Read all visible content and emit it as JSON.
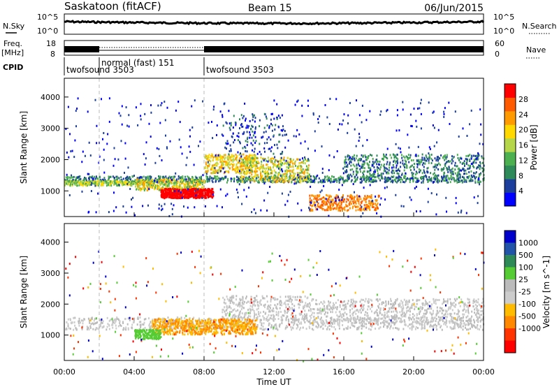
{
  "header": {
    "title": "Saskatoon (fitACF)",
    "beam": "Beam 15",
    "date": "06/Jun/2015"
  },
  "side_labels": {
    "nsky": "N.Sky",
    "freq_top": "Freq.",
    "freq_unit": "[MHz]",
    "cpid": "CPID",
    "nsearch": "N.Search",
    "nave": "Nave"
  },
  "noise_panel": {
    "left_ticks": [
      "10^5",
      "10^0"
    ],
    "right_ticks": [
      "10^5",
      "10^0"
    ]
  },
  "freq_panel": {
    "left_ticks": [
      "18",
      "8"
    ],
    "right_ticks": [
      "60",
      "0"
    ]
  },
  "cpid_segments": [
    {
      "label": "twofsound 3503",
      "start_h": 0,
      "end_h": 2
    },
    {
      "label": "normal (fast) 151",
      "start_h": 2,
      "end_h": 8
    },
    {
      "label": "twofsound 3503",
      "start_h": 8,
      "end_h": 24
    }
  ],
  "colors": {
    "power_scale": [
      "#0000ff",
      "#1c3f9e",
      "#2f8a5a",
      "#4caf50",
      "#b6d64a",
      "#ffd800",
      "#ff9a00",
      "#ff5a00",
      "#ff0000"
    ],
    "velocity_scale": [
      "#0000cc",
      "#2255aa",
      "#2e8b57",
      "#55cc33",
      "#bbbbbb",
      "#cccccc",
      "#ffbb00",
      "#ff8800",
      "#ff3300",
      "#ff0000"
    ]
  },
  "chart_data": [
    {
      "type": "heatmap",
      "name": "power",
      "xlabel": "Time UT",
      "ylabel": "Slant Range [km]",
      "xlim": [
        0,
        24
      ],
      "ylim": [
        180,
        4600
      ],
      "xticks": [
        "00:00",
        "04:00",
        "08:00",
        "12:00",
        "16:00",
        "20:00",
        "00:00"
      ],
      "yticks": [
        "1000",
        "2000",
        "3000",
        "4000"
      ],
      "colorbar_label": "Power [dB]",
      "colorbar_ticks": [
        "4",
        "8",
        "12",
        "16",
        "20",
        "24",
        "28"
      ]
    },
    {
      "type": "heatmap",
      "name": "velocity",
      "xlabel": "Time UT",
      "ylabel": "Slant Range [km]",
      "xlim": [
        0,
        24
      ],
      "ylim": [
        180,
        4600
      ],
      "xticks": [
        "00:00",
        "04:00",
        "08:00",
        "12:00",
        "16:00",
        "20:00",
        "00:00"
      ],
      "yticks": [
        "1000",
        "2000",
        "3000",
        "4000"
      ],
      "colorbar_label": "Velocity [m s^-1]",
      "colorbar_ticks": [
        "1000",
        "500",
        "100",
        "25",
        "-25",
        "-100",
        "-500",
        "-1000"
      ]
    }
  ]
}
